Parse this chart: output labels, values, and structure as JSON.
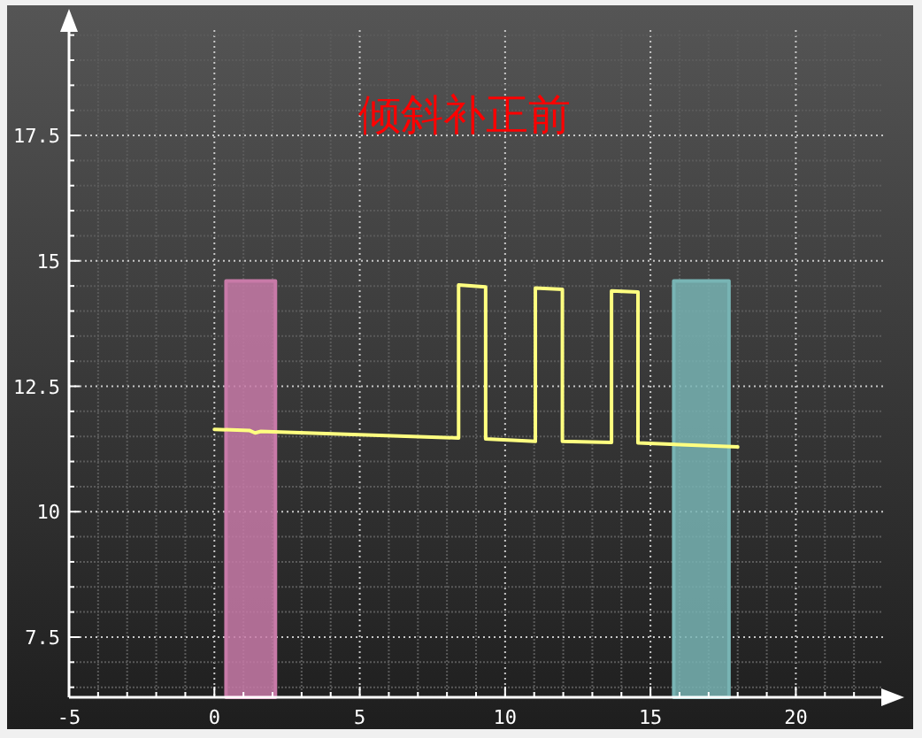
{
  "chart_data": {
    "type": "line",
    "title": "倾斜补正前",
    "xlim": [
      -5,
      23
    ],
    "ylim": [
      6.3,
      19.6
    ],
    "xticks": [
      -5,
      {
        "value": -4,
        "label": null
      },
      {
        "value": -3,
        "label": null
      },
      {
        "value": -2,
        "label": null
      },
      {
        "value": -1,
        "label": null
      },
      0,
      {
        "value": 1,
        "label": null
      },
      {
        "value": 2,
        "label": null
      },
      {
        "value": 3,
        "label": null
      },
      {
        "value": 4,
        "label": null
      },
      5,
      {
        "value": 6,
        "label": null
      },
      {
        "value": 7,
        "label": null
      },
      {
        "value": 8,
        "label": null
      },
      {
        "value": 9,
        "label": null
      },
      10,
      {
        "value": 11,
        "label": null
      },
      {
        "value": 12,
        "label": null
      },
      {
        "value": 13,
        "label": null
      },
      {
        "value": 14,
        "label": null
      },
      15,
      {
        "value": 16,
        "label": null
      },
      {
        "value": 17,
        "label": null
      },
      {
        "value": 18,
        "label": null
      },
      {
        "value": 19,
        "label": null
      },
      20,
      {
        "value": 21,
        "label": null
      },
      {
        "value": 22,
        "label": null
      }
    ],
    "yticks": [
      {
        "value": 6.5,
        "label": null
      },
      {
        "value": 7,
        "label": null
      },
      7.5,
      {
        "value": 8,
        "label": null
      },
      {
        "value": 8.5,
        "label": null
      },
      {
        "value": 9,
        "label": null
      },
      {
        "value": 9.5,
        "label": null
      },
      10,
      {
        "value": 10.5,
        "label": null
      },
      {
        "value": 11,
        "label": null
      },
      {
        "value": 11.5,
        "label": null
      },
      {
        "value": 12,
        "label": null
      },
      12.5,
      {
        "value": 13,
        "label": null
      },
      {
        "value": 13.5,
        "label": null
      },
      {
        "value": 14,
        "label": null
      },
      {
        "value": 14.5,
        "label": null
      },
      15,
      {
        "value": 15.5,
        "label": null
      },
      {
        "value": 16,
        "label": null
      },
      {
        "value": 16.5,
        "label": null
      },
      {
        "value": 17,
        "label": null
      },
      17.5,
      {
        "value": 18,
        "label": null
      },
      {
        "value": 18.5,
        "label": null
      },
      {
        "value": 19,
        "label": null
      },
      {
        "value": 19.5,
        "label": null
      }
    ],
    "grid": true,
    "series": [
      {
        "type": "area",
        "color": "#c87aa8",
        "x": [
          0.4,
          2.1
        ],
        "values": [
          14.6,
          14.6
        ]
      },
      {
        "type": "area",
        "color": "#78b4b4",
        "x": [
          15.8,
          17.7
        ],
        "values": [
          14.6,
          14.6
        ]
      },
      {
        "color": "#ffff80",
        "x": [
          0,
          1.2,
          1.4,
          1.6,
          8.4,
          8.4,
          9.33,
          9.33,
          11.04,
          11.04,
          11.97,
          11.97,
          13.66,
          13.66,
          14.57,
          14.57,
          18.0
        ],
        "values": [
          11.64,
          11.62,
          11.57,
          11.6,
          11.47,
          14.52,
          14.48,
          11.45,
          11.4,
          14.46,
          14.43,
          11.4,
          11.38,
          14.4,
          14.38,
          11.37,
          11.29
        ]
      }
    ]
  }
}
